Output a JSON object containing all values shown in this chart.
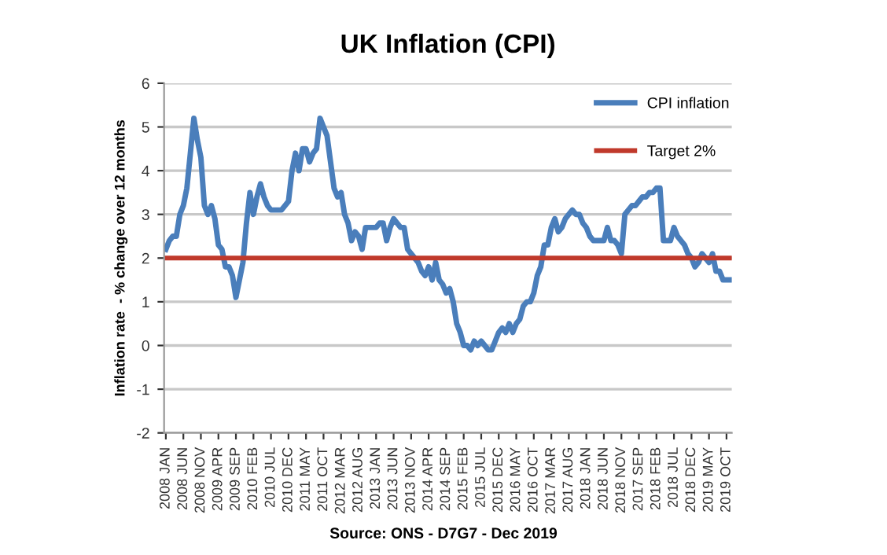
{
  "chart_data": {
    "type": "line",
    "title": "UK Inflation (CPI)",
    "ylabel": "Inflation rate  - % change over 12 months",
    "categories": [
      "2008 JAN",
      null,
      null,
      null,
      null,
      "2008 JUN",
      null,
      null,
      null,
      null,
      "2008 NOV",
      null,
      null,
      null,
      null,
      "2009 APR",
      null,
      null,
      null,
      null,
      "2009 SEP",
      null,
      null,
      null,
      null,
      "2010 FEB",
      null,
      null,
      null,
      null,
      "2010 JUL",
      null,
      null,
      null,
      null,
      "2010 DEC",
      null,
      null,
      null,
      null,
      "2011 MAY",
      null,
      null,
      null,
      null,
      "2011 OCT",
      null,
      null,
      null,
      null,
      "2012 MAR",
      null,
      null,
      null,
      null,
      "2012 AUG",
      null,
      null,
      null,
      null,
      "2013 JAN",
      null,
      null,
      null,
      null,
      "2013 JUN",
      null,
      null,
      null,
      null,
      "2013 NOV",
      null,
      null,
      null,
      null,
      "2014 APR",
      null,
      null,
      null,
      null,
      "2014 SEP",
      null,
      null,
      null,
      null,
      "2015 FEB",
      null,
      null,
      null,
      null,
      "2015 JUL",
      null,
      null,
      null,
      null,
      "2015 DEC",
      null,
      null,
      null,
      null,
      "2016 MAY",
      null,
      null,
      null,
      null,
      "2016 OCT",
      null,
      null,
      null,
      null,
      "2017 MAR",
      null,
      null,
      null,
      null,
      "2017 AUG",
      null,
      null,
      null,
      null,
      "2018 JAN",
      null,
      null,
      null,
      null,
      "2018 JUN",
      null,
      null,
      null,
      null,
      "2018 NOV",
      null,
      null,
      null,
      null,
      "2017 SEP",
      null,
      null,
      null,
      null,
      "2018 FEB",
      null,
      null,
      null,
      null,
      "2018 JUL",
      null,
      null,
      null,
      null,
      "2018 DEC",
      null,
      null,
      null,
      null,
      "2019 MAY",
      null,
      null,
      null,
      null,
      "2019 OCT",
      null
    ],
    "series": [
      {
        "name": "CPI inflation",
        "color": "#4a7ebb",
        "values": [
          2.2,
          2.4,
          2.5,
          2.5,
          3.0,
          3.2,
          3.6,
          4.4,
          5.2,
          4.7,
          4.3,
          3.2,
          3.0,
          3.2,
          2.9,
          2.3,
          2.2,
          1.8,
          1.8,
          1.6,
          1.1,
          1.5,
          1.9,
          2.8,
          3.5,
          3.0,
          3.4,
          3.7,
          3.4,
          3.2,
          3.1,
          3.1,
          3.1,
          3.1,
          3.2,
          3.3,
          4.0,
          4.4,
          4.0,
          4.5,
          4.5,
          4.2,
          4.4,
          4.5,
          5.2,
          5.0,
          4.8,
          4.2,
          3.6,
          3.4,
          3.5,
          3.0,
          2.8,
          2.4,
          2.6,
          2.5,
          2.2,
          2.7,
          2.7,
          2.7,
          2.7,
          2.8,
          2.8,
          2.4,
          2.7,
          2.9,
          2.8,
          2.7,
          2.7,
          2.2,
          2.1,
          2.0,
          1.9,
          1.7,
          1.6,
          1.8,
          1.5,
          1.9,
          1.5,
          1.4,
          1.2,
          1.3,
          1.0,
          0.5,
          0.3,
          0.0,
          0.0,
          -0.1,
          0.1,
          0.0,
          0.1,
          0.0,
          -0.1,
          -0.1,
          0.1,
          0.3,
          0.4,
          0.3,
          0.5,
          0.3,
          0.5,
          0.6,
          0.9,
          1.0,
          1.0,
          1.2,
          1.6,
          1.8,
          2.3,
          2.3,
          2.7,
          2.9,
          2.6,
          2.7,
          2.9,
          3.0,
          3.1,
          3.0,
          3.0,
          2.8,
          2.7,
          2.5,
          2.4,
          2.4,
          2.4,
          2.4,
          2.7,
          2.4,
          2.4,
          2.3,
          2.1,
          3.0,
          3.1,
          3.2,
          3.2,
          3.3,
          3.4,
          3.4,
          3.5,
          3.5,
          3.6,
          3.6,
          2.4,
          2.4,
          2.4,
          2.7,
          2.5,
          2.4,
          2.3,
          2.1,
          2.0,
          1.8,
          1.9,
          2.1,
          2.0,
          1.9,
          2.1,
          1.7,
          1.7,
          1.5,
          1.5,
          1.5
        ]
      }
    ],
    "ref_lines": [
      {
        "axis": "y",
        "value": 2,
        "label": "Target 2%",
        "color": "#c0392b",
        "line_style": "solid"
      }
    ],
    "ylim": [
      -2,
      6
    ],
    "yticks": [
      -2,
      -1,
      0,
      1,
      2,
      3,
      4,
      5,
      6
    ],
    "grid": "y",
    "legend": "top right",
    "marker": "none",
    "line_style": "solid",
    "annotations": [
      "Source: ONS - D7G7 - Dec 2019"
    ]
  }
}
